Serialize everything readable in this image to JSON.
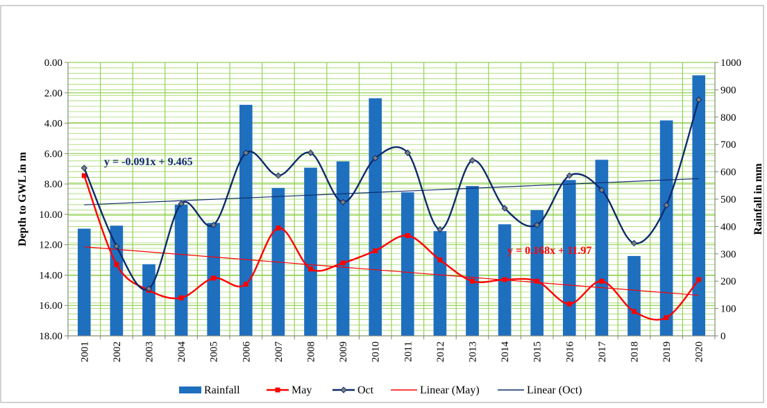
{
  "chart_data": {
    "type": "bar",
    "x": [
      "2001",
      "2002",
      "2003",
      "2004",
      "2005",
      "2006",
      "2007",
      "2008",
      "2009",
      "2010",
      "2011",
      "2012",
      "2013",
      "2014",
      "2015",
      "2016",
      "2017",
      "2018",
      "2019",
      "2020"
    ],
    "series": [
      {
        "name": "Rainfall",
        "kind": "bar",
        "axis": "right",
        "color": "#1f6fbf",
        "values": [
          392,
          403,
          262,
          480,
          413,
          845,
          541,
          615,
          638,
          869,
          525,
          383,
          548,
          408,
          460,
          570,
          644,
          292,
          788,
          953
        ]
      },
      {
        "name": "May",
        "kind": "line",
        "axis": "left",
        "color": "#ff0000",
        "marker": "square",
        "values": [
          7.45,
          13.3,
          15.0,
          15.5,
          14.2,
          14.6,
          10.9,
          13.6,
          13.2,
          12.4,
          11.4,
          13.0,
          14.4,
          14.3,
          14.4,
          15.9,
          14.4,
          16.4,
          16.8,
          14.3
        ]
      },
      {
        "name": "Oct",
        "kind": "line",
        "axis": "left",
        "color": "#0d2b6b",
        "marker": "diamond",
        "values": [
          6.95,
          12.1,
          14.9,
          9.3,
          10.7,
          5.95,
          7.45,
          5.95,
          9.2,
          6.3,
          5.95,
          11.0,
          6.45,
          9.6,
          10.7,
          7.45,
          8.4,
          11.9,
          9.4,
          2.45
        ]
      },
      {
        "name": "Linear (May)",
        "kind": "trend",
        "axis": "left",
        "color": "#ff0000",
        "slope": 0.168,
        "intercept": 11.97
      },
      {
        "name": "Linear (Oct)",
        "kind": "trend",
        "axis": "left",
        "color": "#0d2b6b",
        "slope": -0.091,
        "intercept": 9.465
      }
    ],
    "left_axis": {
      "label": "Depth to GWL in m",
      "min": 0,
      "max": 18,
      "step": 2,
      "inverted": true,
      "tick_labels": [
        "0.00",
        "2.00",
        "4.00",
        "6.00",
        "8.00",
        "10.00",
        "12.00",
        "14.00",
        "16.00",
        "18.00"
      ]
    },
    "right_axis": {
      "label": "Rainfall in mm",
      "min": 0,
      "max": 1000,
      "step": 100,
      "tick_labels": [
        "0",
        "100",
        "200",
        "300",
        "400",
        "500",
        "600",
        "700",
        "800",
        "900",
        "1000"
      ]
    },
    "annotations": {
      "oct_trend_equation": "y = -0.091x + 9.465",
      "may_trend_equation": "y = 0.168x + 11.97"
    },
    "grid": true,
    "grid_color": "#92d050",
    "legend_position": "bottom"
  }
}
